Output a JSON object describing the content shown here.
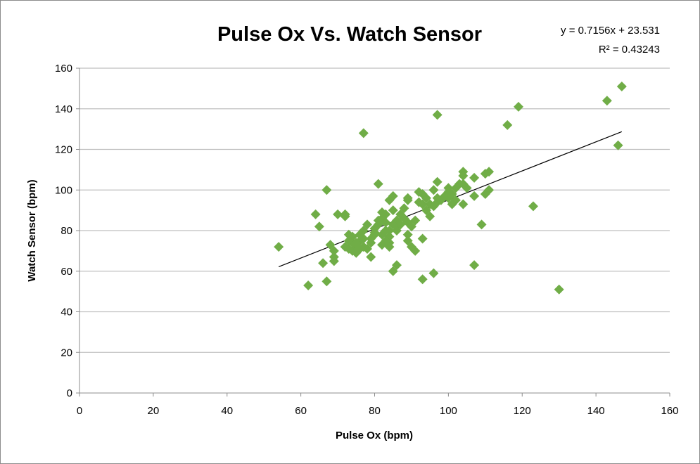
{
  "chart_data": {
    "type": "scatter",
    "title": "Pulse Ox Vs. Watch Sensor",
    "xlabel": "Pulse Ox (bpm)",
    "ylabel": "Watch Sensor (bpm)",
    "xlim": [
      0,
      160
    ],
    "ylim": [
      0,
      160
    ],
    "xticks": [
      0,
      20,
      40,
      60,
      80,
      100,
      120,
      140,
      160
    ],
    "yticks": [
      0,
      20,
      40,
      60,
      80,
      100,
      120,
      140,
      160
    ],
    "grid": "horizontal",
    "marker_color": "#70ad47",
    "trendline": {
      "slope": 0.7156,
      "intercept": 23.531,
      "x_range": [
        54,
        147
      ],
      "equation_label": "y = 0.7156x + 23.531",
      "r2_label": "R² = 0.43243"
    },
    "points": [
      [
        54,
        72
      ],
      [
        62,
        53
      ],
      [
        64,
        88
      ],
      [
        65,
        82
      ],
      [
        66,
        64
      ],
      [
        67,
        100
      ],
      [
        67,
        55
      ],
      [
        68,
        73
      ],
      [
        69,
        67
      ],
      [
        69,
        65
      ],
      [
        69,
        70
      ],
      [
        70,
        88
      ],
      [
        72,
        88
      ],
      [
        72,
        87
      ],
      [
        77,
        128
      ],
      [
        81,
        103
      ],
      [
        85,
        60
      ],
      [
        86,
        63
      ],
      [
        93,
        56
      ],
      [
        96,
        59
      ],
      [
        97,
        137
      ],
      [
        107,
        63
      ],
      [
        109,
        83
      ],
      [
        116,
        132
      ],
      [
        119,
        141
      ],
      [
        123,
        92
      ],
      [
        130,
        51
      ],
      [
        143,
        144
      ],
      [
        146,
        122
      ],
      [
        147,
        151
      ],
      [
        111,
        109
      ],
      [
        110,
        108
      ],
      [
        107,
        106
      ],
      [
        104,
        109
      ],
      [
        104,
        107
      ],
      [
        104,
        103
      ],
      [
        105,
        101
      ],
      [
        104,
        93
      ],
      [
        110,
        98
      ],
      [
        111,
        100
      ],
      [
        107,
        97
      ],
      [
        102,
        95
      ],
      [
        100,
        101
      ],
      [
        101,
        93
      ],
      [
        100,
        96
      ],
      [
        97,
        104
      ],
      [
        97,
        96
      ],
      [
        96,
        100
      ],
      [
        95,
        93
      ],
      [
        95,
        87
      ],
      [
        93,
        98
      ],
      [
        92,
        99
      ],
      [
        92,
        94
      ],
      [
        93,
        76
      ],
      [
        91,
        70
      ],
      [
        90,
        72
      ],
      [
        89,
        75
      ],
      [
        89,
        78
      ],
      [
        89,
        84
      ],
      [
        89,
        95
      ],
      [
        89,
        96
      ],
      [
        88,
        91
      ],
      [
        87,
        88
      ],
      [
        86,
        85
      ],
      [
        86,
        82
      ],
      [
        85,
        97
      ],
      [
        85,
        90
      ],
      [
        84,
        95
      ],
      [
        83,
        88
      ],
      [
        82,
        89
      ],
      [
        82,
        86
      ],
      [
        83,
        80
      ],
      [
        84,
        77
      ],
      [
        84,
        74
      ],
      [
        84,
        72
      ],
      [
        83,
        75
      ],
      [
        82,
        73
      ],
      [
        81,
        83
      ],
      [
        81,
        85
      ],
      [
        80,
        81
      ],
      [
        80,
        78
      ],
      [
        79,
        74
      ],
      [
        79,
        67
      ],
      [
        78,
        83
      ],
      [
        78,
        71
      ],
      [
        77,
        80
      ],
      [
        77,
        76
      ],
      [
        77,
        72
      ],
      [
        76,
        75
      ],
      [
        76,
        78
      ],
      [
        75,
        69
      ],
      [
        75,
        72
      ],
      [
        74,
        70
      ],
      [
        74,
        74
      ],
      [
        74,
        77
      ],
      [
        73,
        78
      ],
      [
        73,
        71
      ],
      [
        73,
        75
      ],
      [
        72,
        72
      ],
      [
        80,
        79
      ],
      [
        86,
        80
      ],
      [
        87,
        83
      ],
      [
        88,
        86
      ],
      [
        90,
        82
      ],
      [
        91,
        85
      ],
      [
        93,
        93
      ],
      [
        94,
        96
      ],
      [
        98,
        95
      ],
      [
        99,
        97
      ],
      [
        100,
        99
      ],
      [
        101,
        98
      ],
      [
        102,
        101
      ],
      [
        103,
        103
      ],
      [
        96,
        92
      ],
      [
        97,
        94
      ],
      [
        94,
        90
      ],
      [
        85,
        83
      ],
      [
        84,
        80
      ],
      [
        83,
        84
      ],
      [
        82,
        78
      ],
      [
        79,
        76
      ],
      [
        75,
        74
      ],
      [
        76,
        71
      ]
    ]
  }
}
